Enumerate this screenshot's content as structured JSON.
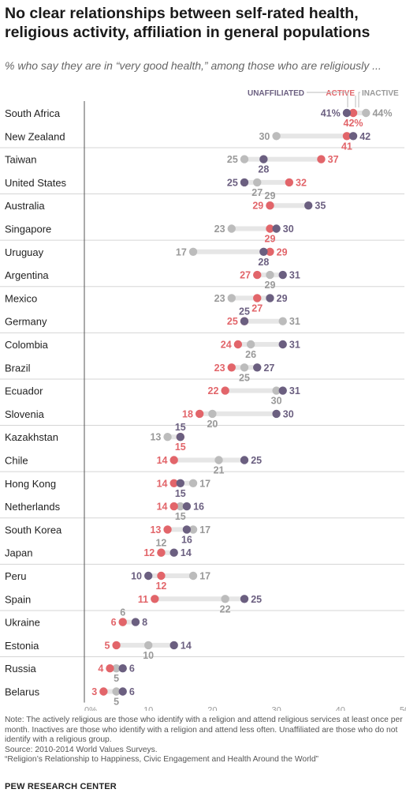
{
  "title": "No clear relationships between self-rated health, religious activity, affiliation in general populations",
  "subtitle": "% who say they are in “very good health,” among those who are religiously ...",
  "notes": [
    "Note: The actively religious are those who identify with a religion and attend religious services at least once per month. Inactives are those who identify with a religion and attend less often. Unaffiliated are those who do not identify with a religious group.",
    "Source: 2010-2014 World Values Surveys.",
    "“Religion’s Relationship to Happiness, Civic Engagement and Health Around the World”"
  ],
  "brand": "PEW RESEARCH CENTER",
  "colors": {
    "unaffiliated": "#6b5f80",
    "active": "#e2656a",
    "inactive": "#bcbcbc",
    "connector": "#e6e6e6"
  },
  "chart_data": {
    "type": "scatter",
    "legend": [
      "UNAFFILIATED",
      "ACTIVE",
      "INACTIVE"
    ],
    "x_ticks": [
      "0%",
      "10",
      "20",
      "30",
      "40",
      "50"
    ],
    "xlim": [
      0,
      50
    ],
    "series": [
      {
        "name": "UNAFFILIATED",
        "key": "unaffiliated"
      },
      {
        "name": "ACTIVE",
        "key": "active"
      },
      {
        "name": "INACTIVE",
        "key": "inactive"
      }
    ],
    "rows": [
      {
        "country": "South Africa",
        "unaffiliated": 41,
        "active": 42,
        "inactive": 44,
        "labels": {
          "unaffiliated": "41%",
          "active": "42%",
          "inactive": "44%"
        }
      },
      {
        "country": "New Zealand",
        "unaffiliated": 42,
        "active": 41,
        "inactive": 30
      },
      {
        "country": "Taiwan",
        "unaffiliated": 28,
        "active": 37,
        "inactive": 25
      },
      {
        "country": "United States",
        "unaffiliated": 25,
        "active": 32,
        "inactive": 27
      },
      {
        "country": "Australia",
        "unaffiliated": 35,
        "active": 29,
        "inactive": 29
      },
      {
        "country": "Singapore",
        "unaffiliated": 30,
        "active": 29,
        "inactive": 23
      },
      {
        "country": "Uruguay",
        "unaffiliated": 28,
        "active": 29,
        "inactive": 17
      },
      {
        "country": "Argentina",
        "unaffiliated": 31,
        "active": 27,
        "inactive": 29
      },
      {
        "country": "Mexico",
        "unaffiliated": 29,
        "active": 27,
        "inactive": 23
      },
      {
        "country": "Germany",
        "unaffiliated": 25,
        "active": 25,
        "inactive": 31
      },
      {
        "country": "Colombia",
        "unaffiliated": 31,
        "active": 24,
        "inactive": 26
      },
      {
        "country": "Brazil",
        "unaffiliated": 27,
        "active": 23,
        "inactive": 25
      },
      {
        "country": "Ecuador",
        "unaffiliated": 31,
        "active": 22,
        "inactive": 30
      },
      {
        "country": "Slovenia",
        "unaffiliated": 30,
        "active": 18,
        "inactive": 20
      },
      {
        "country": "Kazakhstan",
        "unaffiliated": 15,
        "active": 15,
        "inactive": 13
      },
      {
        "country": "Chile",
        "unaffiliated": 25,
        "active": 14,
        "inactive": 21
      },
      {
        "country": "Hong Kong",
        "unaffiliated": 15,
        "active": 14,
        "inactive": 17
      },
      {
        "country": "Netherlands",
        "unaffiliated": 16,
        "active": 14,
        "inactive": 15
      },
      {
        "country": "South Korea",
        "unaffiliated": 16,
        "active": 13,
        "inactive": 17
      },
      {
        "country": "Japan",
        "unaffiliated": 14,
        "active": 12,
        "inactive": 12
      },
      {
        "country": "Peru",
        "unaffiliated": 10,
        "active": 12,
        "inactive": 17
      },
      {
        "country": "Spain",
        "unaffiliated": 25,
        "active": 11,
        "inactive": 22
      },
      {
        "country": "Ukraine",
        "unaffiliated": 8,
        "active": 6,
        "inactive": 6
      },
      {
        "country": "Estonia",
        "unaffiliated": 14,
        "active": 5,
        "inactive": 10
      },
      {
        "country": "Russia",
        "unaffiliated": 6,
        "active": 4,
        "inactive": 5
      },
      {
        "country": "Belarus",
        "unaffiliated": 6,
        "active": 3,
        "inactive": 5
      }
    ]
  }
}
